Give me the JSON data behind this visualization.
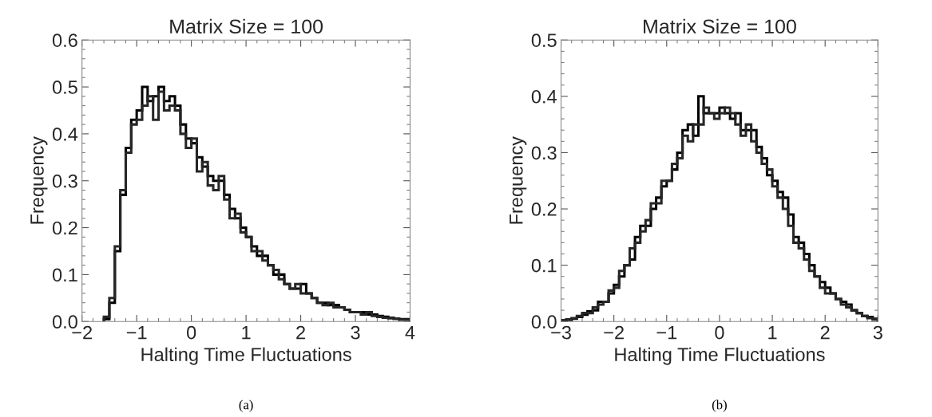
{
  "chart_data": [
    {
      "type": "histogram",
      "title": "Matrix Size = 100",
      "xlabel": "Halting Time Fluctuations",
      "ylabel": "Frequency",
      "annotations": [
        "(a)"
      ],
      "bins": [
        -1.6,
        -1.5,
        -1.4,
        -1.3,
        -1.2,
        -1.1,
        -1.0,
        -0.9,
        -0.8,
        -0.7,
        -0.6,
        -0.5,
        -0.4,
        -0.3,
        -0.2,
        -0.1,
        0.0,
        0.1,
        0.2,
        0.3,
        0.4,
        0.5,
        0.6,
        0.7,
        0.8,
        0.9,
        1.0,
        1.1,
        1.2,
        1.3,
        1.4,
        1.5,
        1.6,
        1.7,
        1.8,
        1.9,
        2.0,
        2.1,
        2.2,
        2.3,
        2.4,
        2.5,
        2.6,
        2.7,
        2.8,
        2.9,
        3.0,
        3.1,
        3.2,
        3.3,
        3.4,
        3.5,
        3.6,
        3.7,
        3.8,
        3.9,
        4.0
      ],
      "series": [
        {
          "color": "#000000",
          "values": [
            0.005,
            0.04,
            0.15,
            0.27,
            0.37,
            0.43,
            0.45,
            0.5,
            0.47,
            0.48,
            0.5,
            0.47,
            0.48,
            0.46,
            0.42,
            0.39,
            0.38,
            0.35,
            0.33,
            0.31,
            0.3,
            0.3,
            0.27,
            0.24,
            0.22,
            0.2,
            0.18,
            0.16,
            0.14,
            0.14,
            0.12,
            0.1,
            0.1,
            0.08,
            0.07,
            0.07,
            0.08,
            0.06,
            0.05,
            0.04,
            0.04,
            0.035,
            0.035,
            0.03,
            0.025,
            0.02,
            0.02,
            0.02,
            0.015,
            0.015,
            0.012,
            0.01,
            0.008,
            0.006,
            0.005,
            0.005
          ]
        },
        {
          "color": "#262626",
          "values": [
            0.01,
            0.05,
            0.16,
            0.28,
            0.36,
            0.42,
            0.43,
            0.46,
            0.48,
            0.43,
            0.49,
            0.45,
            0.46,
            0.45,
            0.4,
            0.37,
            0.39,
            0.32,
            0.34,
            0.29,
            0.28,
            0.31,
            0.26,
            0.22,
            0.23,
            0.19,
            0.18,
            0.15,
            0.15,
            0.13,
            0.12,
            0.11,
            0.09,
            0.08,
            0.07,
            0.08,
            0.06,
            0.06,
            0.05,
            0.04,
            0.035,
            0.04,
            0.03,
            0.03,
            0.025,
            0.02,
            0.02,
            0.015,
            0.02,
            0.012,
            0.01,
            0.008,
            0.007,
            0.006,
            0.004,
            0.004
          ]
        }
      ],
      "xlim": [
        -2,
        4
      ],
      "ylim": [
        0,
        0.6
      ],
      "xticks": [
        {
          "value": -2,
          "label": "−2"
        },
        {
          "value": -1,
          "label": "−1"
        },
        0,
        1,
        2,
        3,
        4
      ],
      "yticks": [
        {
          "value": 0,
          "label": "0.0"
        },
        0.1,
        0.2,
        0.3,
        0.4,
        0.5,
        0.6
      ],
      "grid": false
    },
    {
      "type": "histogram",
      "title": "Matrix Size = 100",
      "xlabel": "Halting Time Fluctuations",
      "ylabel": "Frequency",
      "annotations": [
        "(b)"
      ],
      "bins": [
        -3.0,
        -2.9,
        -2.8,
        -2.7,
        -2.6,
        -2.5,
        -2.4,
        -2.3,
        -2.2,
        -2.1,
        -2.0,
        -1.9,
        -1.8,
        -1.7,
        -1.6,
        -1.5,
        -1.4,
        -1.3,
        -1.2,
        -1.1,
        -1.0,
        -0.9,
        -0.8,
        -0.7,
        -0.6,
        -0.5,
        -0.4,
        -0.3,
        -0.2,
        -0.1,
        0.0,
        0.1,
        0.2,
        0.3,
        0.4,
        0.5,
        0.6,
        0.7,
        0.8,
        0.9,
        1.0,
        1.1,
        1.2,
        1.3,
        1.4,
        1.5,
        1.6,
        1.7,
        1.8,
        1.9,
        2.0,
        2.1,
        2.2,
        2.3,
        2.4,
        2.5,
        2.6,
        2.7,
        2.8,
        2.9,
        3.0
      ],
      "series": [
        {
          "color": "#000000",
          "values": [
            0.002,
            0.003,
            0.005,
            0.008,
            0.012,
            0.018,
            0.02,
            0.035,
            0.035,
            0.05,
            0.065,
            0.08,
            0.1,
            0.11,
            0.15,
            0.17,
            0.17,
            0.2,
            0.22,
            0.24,
            0.25,
            0.27,
            0.3,
            0.34,
            0.35,
            0.33,
            0.4,
            0.37,
            0.37,
            0.37,
            0.38,
            0.37,
            0.36,
            0.37,
            0.34,
            0.34,
            0.34,
            0.31,
            0.29,
            0.26,
            0.25,
            0.23,
            0.22,
            0.19,
            0.15,
            0.14,
            0.12,
            0.1,
            0.08,
            0.07,
            0.06,
            0.05,
            0.04,
            0.035,
            0.03,
            0.02,
            0.015,
            0.01,
            0.008,
            0.005
          ]
        },
        {
          "color": "#262626",
          "values": [
            0.002,
            0.004,
            0.006,
            0.01,
            0.015,
            0.015,
            0.025,
            0.03,
            0.035,
            0.055,
            0.06,
            0.09,
            0.1,
            0.13,
            0.14,
            0.16,
            0.18,
            0.21,
            0.21,
            0.25,
            0.25,
            0.28,
            0.29,
            0.33,
            0.32,
            0.35,
            0.35,
            0.38,
            0.37,
            0.36,
            0.37,
            0.38,
            0.37,
            0.35,
            0.33,
            0.35,
            0.32,
            0.3,
            0.28,
            0.27,
            0.24,
            0.22,
            0.2,
            0.17,
            0.14,
            0.13,
            0.11,
            0.09,
            0.08,
            0.06,
            0.05,
            0.05,
            0.04,
            0.03,
            0.025,
            0.02,
            0.015,
            0.01,
            0.006,
            0.004
          ]
        }
      ],
      "xlim": [
        -3,
        3
      ],
      "ylim": [
        0,
        0.5
      ],
      "xticks": [
        {
          "value": -3,
          "label": "−3"
        },
        {
          "value": -2,
          "label": "−2"
        },
        {
          "value": -1,
          "label": "−1"
        },
        0,
        1,
        2,
        3
      ],
      "yticks": [
        {
          "value": 0,
          "label": "0.0"
        },
        0.1,
        0.2,
        0.3,
        0.4,
        0.5
      ],
      "grid": false
    }
  ]
}
